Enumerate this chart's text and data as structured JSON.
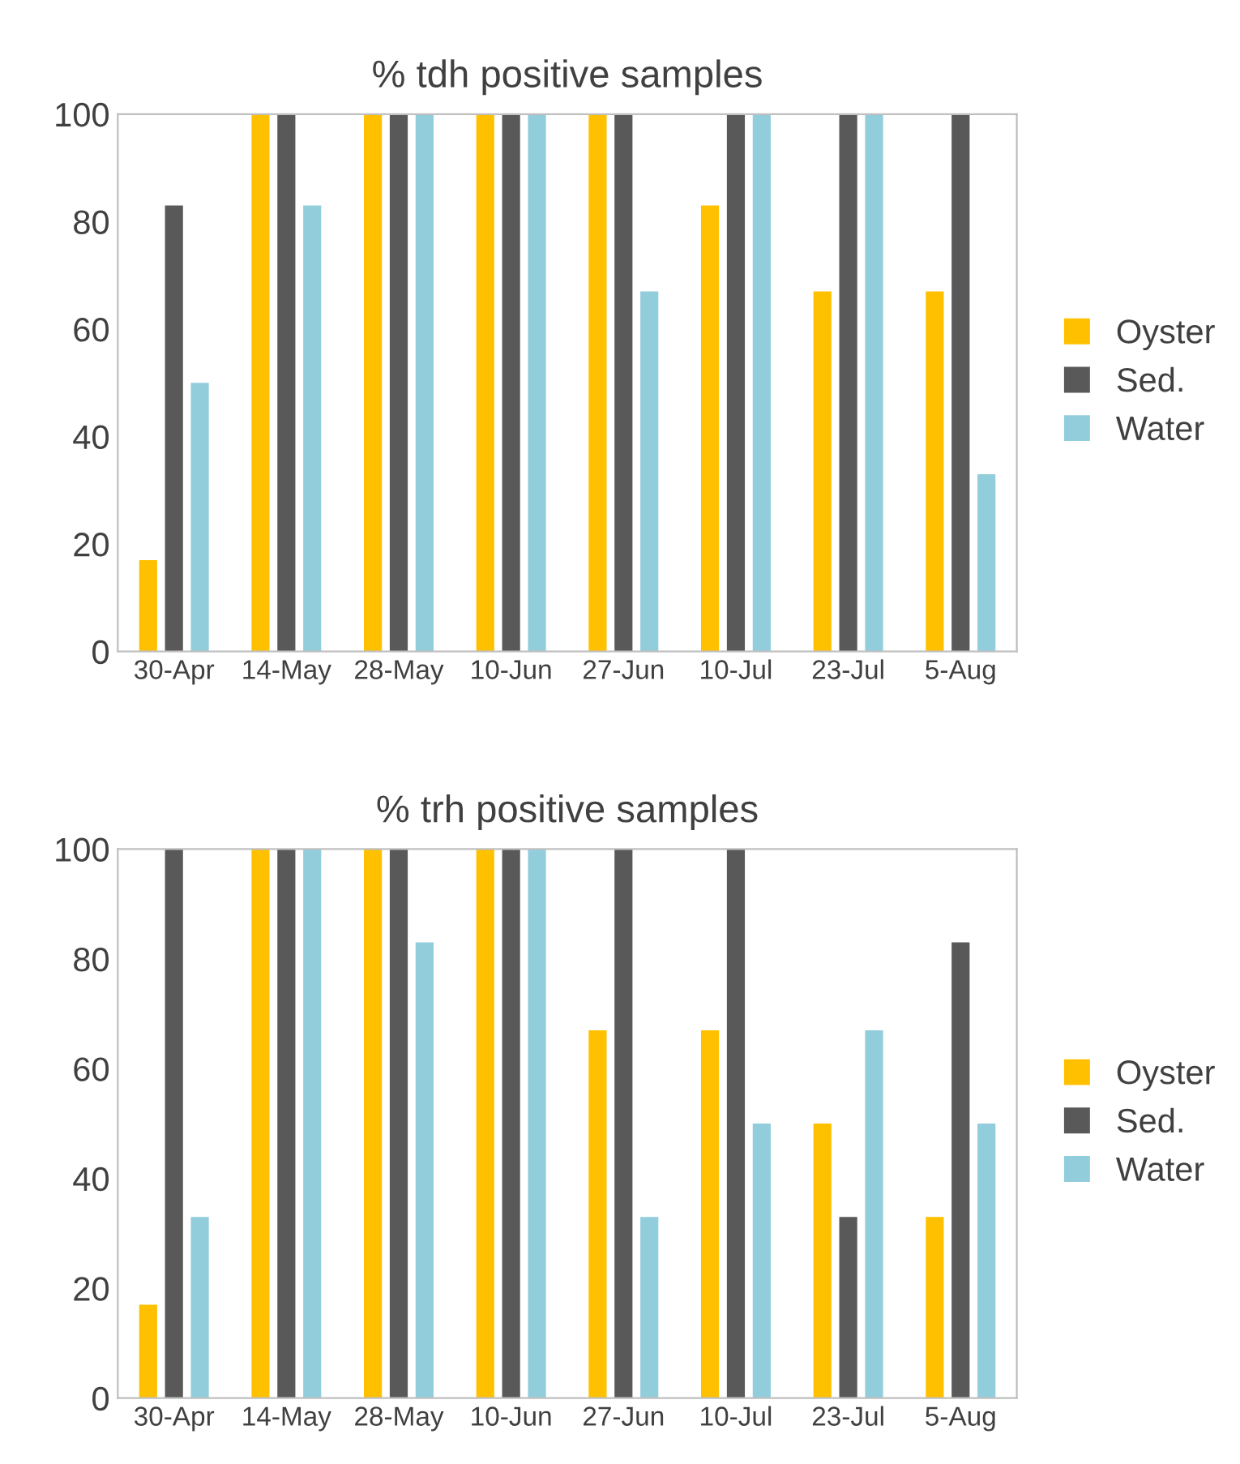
{
  "chart_data": [
    {
      "type": "bar",
      "title": "% tdh positive samples",
      "categories": [
        "30-Apr",
        "14-May",
        "28-May",
        "10-Jun",
        "27-Jun",
        "10-Jul",
        "23-Jul",
        "5-Aug"
      ],
      "series": [
        {
          "name": "Oyster",
          "color": "#ffc000",
          "values": [
            17,
            100,
            100,
            100,
            100,
            83,
            67,
            67
          ]
        },
        {
          "name": "Sed.",
          "color": "#595959",
          "values": [
            83,
            100,
            100,
            100,
            100,
            100,
            100,
            100
          ]
        },
        {
          "name": "Water",
          "color": "#92cddc",
          "values": [
            50,
            83,
            100,
            100,
            67,
            100,
            100,
            33
          ]
        }
      ],
      "ylim": [
        0,
        100
      ],
      "yticks": [
        0,
        20,
        40,
        60,
        80,
        100
      ],
      "grid": false,
      "legend": "right"
    },
    {
      "type": "bar",
      "title": "% trh positive samples",
      "categories": [
        "30-Apr",
        "14-May",
        "28-May",
        "10-Jun",
        "27-Jun",
        "10-Jul",
        "23-Jul",
        "5-Aug"
      ],
      "series": [
        {
          "name": "Oyster",
          "color": "#ffc000",
          "values": [
            17,
            100,
            100,
            100,
            67,
            67,
            50,
            33
          ]
        },
        {
          "name": "Sed.",
          "color": "#595959",
          "values": [
            100,
            100,
            100,
            100,
            100,
            100,
            33,
            83
          ]
        },
        {
          "name": "Water",
          "color": "#92cddc",
          "values": [
            33,
            100,
            83,
            100,
            33,
            50,
            67,
            50
          ]
        }
      ],
      "ylim": [
        0,
        100
      ],
      "yticks": [
        0,
        20,
        40,
        60,
        80,
        100
      ],
      "grid": false,
      "legend": "right"
    }
  ]
}
